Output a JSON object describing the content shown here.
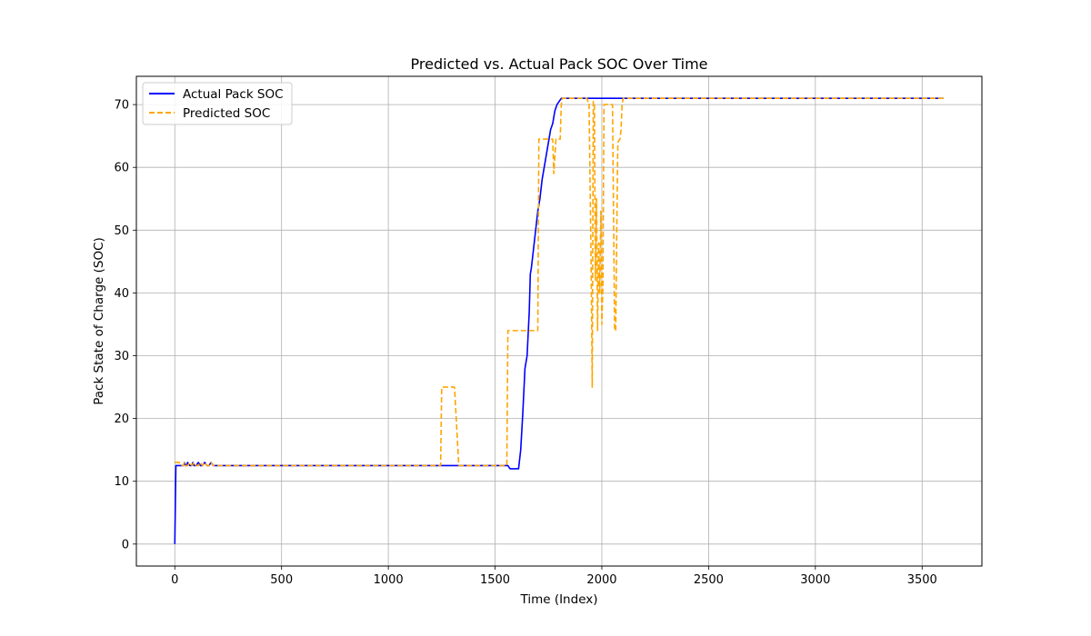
{
  "chart_data": {
    "type": "line",
    "title": "Predicted vs. Actual Pack SOC Over Time",
    "xlabel": "Time (Index)",
    "ylabel": "Pack State of Charge (SOC)",
    "xlim": [
      -180,
      3780
    ],
    "ylim": [
      -3.5,
      74.5
    ],
    "xticks": [
      0,
      500,
      1000,
      1500,
      2000,
      2500,
      3000,
      3500
    ],
    "yticks": [
      0,
      10,
      20,
      30,
      40,
      50,
      60,
      70
    ],
    "grid": true,
    "legend_position": "top-left",
    "series": [
      {
        "name": "Actual Pack SOC",
        "color": "#0000ff",
        "style": "solid",
        "x": [
          0,
          5,
          20,
          40,
          45,
          50,
          55,
          60,
          70,
          80,
          85,
          90,
          100,
          110,
          120,
          130,
          140,
          150,
          160,
          170,
          180,
          200,
          1560,
          1570,
          1580,
          1610,
          1620,
          1630,
          1640,
          1650,
          1660,
          1665,
          1670,
          1680,
          1690,
          1700,
          1710,
          1720,
          1730,
          1740,
          1750,
          1760,
          1770,
          1780,
          1790,
          1800,
          1810,
          1820,
          3600
        ],
        "y": [
          0,
          12.5,
          12.5,
          12.5,
          13,
          12.5,
          12.5,
          13,
          12.5,
          12.5,
          13,
          12.5,
          12.5,
          13,
          12.5,
          12.5,
          13,
          12.5,
          12.5,
          13,
          12.5,
          12.5,
          12.5,
          12,
          12,
          12,
          15,
          21,
          28,
          30,
          37,
          43,
          44,
          47,
          50,
          53,
          55,
          58,
          60,
          62,
          64,
          66,
          67,
          69,
          70,
          70.5,
          71,
          71,
          71
        ]
      },
      {
        "name": "Predicted SOC",
        "color": "#ffa500",
        "style": "dashed",
        "x": [
          0,
          20,
          30,
          40,
          45,
          50,
          60,
          70,
          80,
          90,
          100,
          110,
          120,
          130,
          140,
          150,
          160,
          170,
          180,
          200,
          1245,
          1250,
          1310,
          1330,
          1555,
          1560,
          1700,
          1705,
          1770,
          1775,
          1785,
          1790,
          1805,
          1810,
          1815,
          1820,
          1930,
          1935,
          1940,
          1950,
          1955,
          1960,
          1965,
          1970,
          1975,
          1980,
          1985,
          1990,
          1995,
          2000,
          2005,
          2010,
          2015,
          2020,
          2040,
          2050,
          2060,
          2065,
          2070,
          2075,
          2085,
          2090,
          2095,
          2100,
          3600
        ],
        "y": [
          13,
          13,
          12.5,
          12.5,
          13,
          12.5,
          12.5,
          13,
          12.5,
          13,
          12.5,
          12.5,
          13,
          12.5,
          13,
          12.5,
          12.5,
          13,
          12.5,
          12.5,
          12.5,
          25,
          25,
          12.5,
          12.5,
          34,
          34,
          64.5,
          64.5,
          59,
          64.5,
          64.5,
          64.5,
          70,
          71,
          71,
          71,
          70.5,
          70.5,
          44,
          25,
          70.5,
          70,
          42,
          55,
          34,
          48,
          40,
          53,
          35,
          41,
          70,
          70,
          70,
          70,
          70,
          34,
          34,
          50,
          64,
          64.5,
          66,
          70,
          71,
          71
        ]
      }
    ]
  }
}
